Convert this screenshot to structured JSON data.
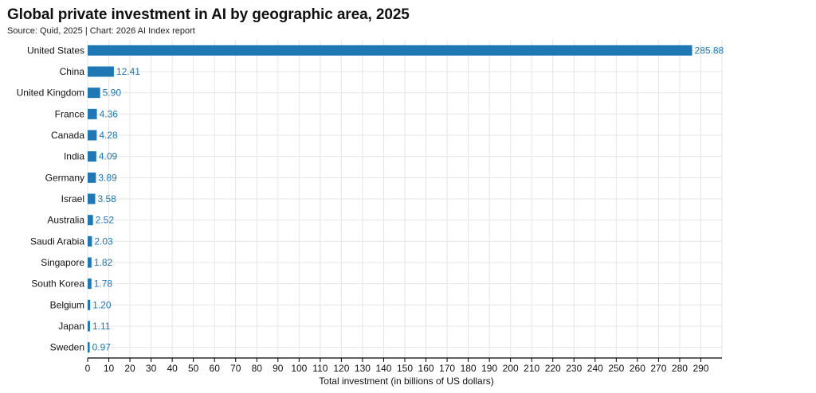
{
  "header": {
    "title": "Global private investment in AI by geographic area, 2025",
    "subtitle": "Source: Quid, 2025 | Chart: 2026 AI Index report"
  },
  "colors": {
    "bar": "#1f77b4",
    "value_label": "#1f77b4",
    "grid": "#e6e6e6",
    "axis": "#000000"
  },
  "chart_data": {
    "type": "bar",
    "orientation": "horizontal",
    "title": "Global private investment in AI by geographic area, 2025",
    "subtitle": "Source: Quid, 2025 | Chart: 2026 AI Index report",
    "xlabel": "Total investment (in billions of US dollars)",
    "ylabel": "",
    "xlim": [
      0,
      300
    ],
    "ticks": [
      0,
      10,
      20,
      30,
      40,
      50,
      60,
      70,
      80,
      90,
      100,
      110,
      120,
      130,
      140,
      150,
      160,
      170,
      180,
      190,
      200,
      210,
      220,
      230,
      240,
      250,
      260,
      270,
      280,
      290
    ],
    "grid": true,
    "categories": [
      "United States",
      "China",
      "United Kingdom",
      "France",
      "Canada",
      "India",
      "Germany",
      "Israel",
      "Australia",
      "Saudi Arabia",
      "Singapore",
      "South Korea",
      "Belgium",
      "Japan",
      "Sweden"
    ],
    "values": [
      285.88,
      12.41,
      5.9,
      4.36,
      4.28,
      4.09,
      3.89,
      3.58,
      2.52,
      2.03,
      1.82,
      1.78,
      1.2,
      1.11,
      0.97
    ],
    "value_labels": [
      "285.88",
      "12.41",
      "5.90",
      "4.36",
      "4.28",
      "4.09",
      "3.89",
      "3.58",
      "2.52",
      "2.03",
      "1.82",
      "1.78",
      "1.20",
      "1.11",
      "0.97"
    ]
  }
}
